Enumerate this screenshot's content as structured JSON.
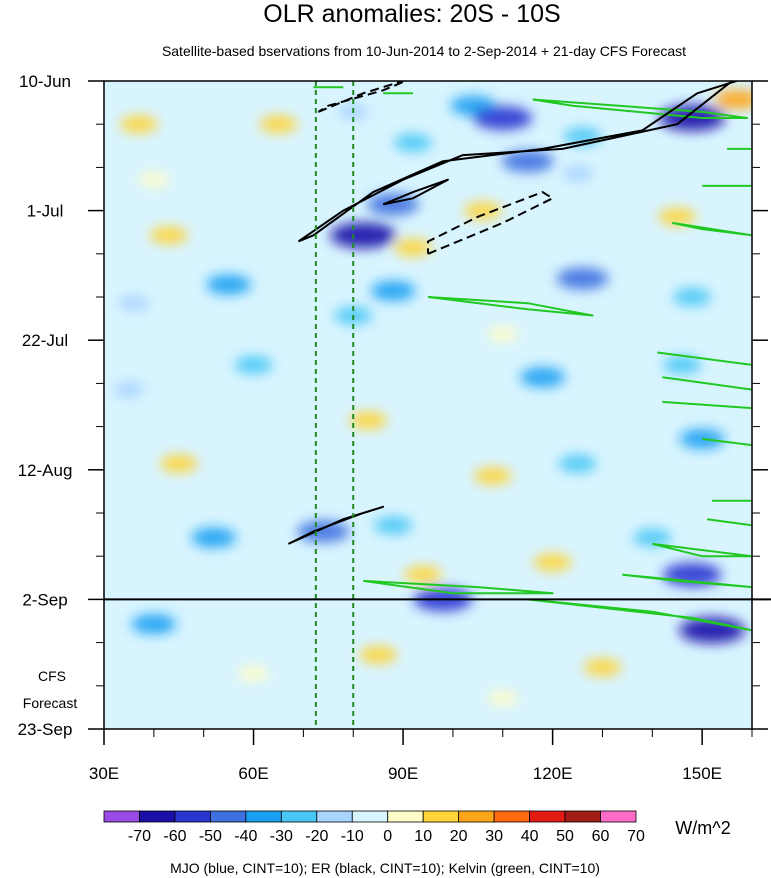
{
  "chart_data": {
    "type": "heatmap",
    "title": "OLR anomalies: 20S - 10S",
    "subtitle": "Satellite-based bservations from 10-Jun-2014 to 2-Sep-2014 + 21-day CFS Forecast",
    "x_axis": {
      "range": [
        30,
        160
      ],
      "unit": "degrees E",
      "ticks": [
        {
          "value": 30,
          "label": "30E"
        },
        {
          "value": 60,
          "label": "60E"
        },
        {
          "value": 90,
          "label": "90E"
        },
        {
          "value": 120,
          "label": "120E"
        },
        {
          "value": 150,
          "label": "150E"
        }
      ]
    },
    "y_axis": {
      "range_days": [
        0,
        105
      ],
      "origin_date": "10-Jun-2014",
      "direction": "time increases downward",
      "ticks": [
        {
          "day": 0,
          "label": "10-Jun"
        },
        {
          "day": 21,
          "label": "1-Jul"
        },
        {
          "day": 42,
          "label": "22-Jul"
        },
        {
          "day": 63,
          "label": "12-Aug"
        },
        {
          "day": 84,
          "label": "2-Sep"
        },
        {
          "day": 105,
          "label": "23-Sep"
        }
      ]
    },
    "forecast": {
      "start_day": 84,
      "label_line1": "CFS",
      "label_line2": "Forecast"
    },
    "reference_lines": {
      "longitudes": [
        72.5,
        80
      ],
      "style": "green dashed"
    },
    "colorbar": {
      "unit": "W/m^2",
      "levels": [
        -70,
        -60,
        -50,
        -40,
        -30,
        -20,
        -10,
        0,
        10,
        20,
        30,
        40,
        50,
        60,
        70
      ],
      "labels": [
        "-70",
        "-60",
        "-50",
        "-40",
        "-30",
        "-20",
        "-10",
        "0",
        "10",
        "20",
        "30",
        "40",
        "50",
        "60",
        "70"
      ],
      "colors": [
        "#9a4be6",
        "#1a10a8",
        "#2a35d0",
        "#3f70e0",
        "#1aa0f2",
        "#48c6f5",
        "#a8d4ff",
        "#d8f4ff",
        "#fffdc8",
        "#ffd53a",
        "#ffa51a",
        "#ff6a10",
        "#e31a14",
        "#a31c16",
        "#ff6cc8"
      ]
    },
    "shaded_anomalies": [
      {
        "lon": 80,
        "day": 5,
        "value": -10
      },
      {
        "lon": 104,
        "day": 4,
        "value": -30
      },
      {
        "lon": 110,
        "day": 6,
        "value": -50
      },
      {
        "lon": 126,
        "day": 9,
        "value": -20
      },
      {
        "lon": 148,
        "day": 6,
        "value": -60
      },
      {
        "lon": 157,
        "day": 3,
        "value": 30
      },
      {
        "lon": 92,
        "day": 10,
        "value": -20
      },
      {
        "lon": 115,
        "day": 13,
        "value": -40
      },
      {
        "lon": 125,
        "day": 15,
        "value": -10
      },
      {
        "lon": 37,
        "day": 7,
        "value": 20
      },
      {
        "lon": 65,
        "day": 7,
        "value": 20
      },
      {
        "lon": 40,
        "day": 16,
        "value": 10
      },
      {
        "lon": 88,
        "day": 20,
        "value": -40
      },
      {
        "lon": 106,
        "day": 21,
        "value": 20
      },
      {
        "lon": 82,
        "day": 25,
        "value": -60
      },
      {
        "lon": 92,
        "day": 27,
        "value": 20
      },
      {
        "lon": 145,
        "day": 22,
        "value": 20
      },
      {
        "lon": 43,
        "day": 25,
        "value": 20
      },
      {
        "lon": 55,
        "day": 33,
        "value": -30
      },
      {
        "lon": 88,
        "day": 34,
        "value": -30
      },
      {
        "lon": 126,
        "day": 32,
        "value": -40
      },
      {
        "lon": 148,
        "day": 35,
        "value": -20
      },
      {
        "lon": 80,
        "day": 38,
        "value": -20
      },
      {
        "lon": 36,
        "day": 36,
        "value": -10
      },
      {
        "lon": 110,
        "day": 41,
        "value": 10
      },
      {
        "lon": 60,
        "day": 46,
        "value": -20
      },
      {
        "lon": 118,
        "day": 48,
        "value": -30
      },
      {
        "lon": 146,
        "day": 46,
        "value": -20
      },
      {
        "lon": 83,
        "day": 55,
        "value": 20
      },
      {
        "lon": 35,
        "day": 50,
        "value": -10
      },
      {
        "lon": 125,
        "day": 62,
        "value": -20
      },
      {
        "lon": 150,
        "day": 58,
        "value": -30
      },
      {
        "lon": 45,
        "day": 62,
        "value": 20
      },
      {
        "lon": 108,
        "day": 64,
        "value": 20
      },
      {
        "lon": 74,
        "day": 73,
        "value": -40
      },
      {
        "lon": 88,
        "day": 72,
        "value": -20
      },
      {
        "lon": 52,
        "day": 74,
        "value": -30
      },
      {
        "lon": 94,
        "day": 80,
        "value": 20
      },
      {
        "lon": 120,
        "day": 78,
        "value": 20
      },
      {
        "lon": 140,
        "day": 74,
        "value": -20
      },
      {
        "lon": 148,
        "day": 80,
        "value": -50
      },
      {
        "lon": 98,
        "day": 84,
        "value": -50
      },
      {
        "lon": 40,
        "day": 88,
        "value": -30
      },
      {
        "lon": 85,
        "day": 93,
        "value": 20
      },
      {
        "lon": 130,
        "day": 95,
        "value": 20
      },
      {
        "lon": 152,
        "day": 89,
        "value": -60
      },
      {
        "lon": 60,
        "day": 96,
        "value": 10
      },
      {
        "lon": 110,
        "day": 100,
        "value": 10
      }
    ],
    "mjo_contours": {
      "label": "MJO (blue, CINT=10)",
      "contours": []
    },
    "er_contours": {
      "label": "ER (black, CINT=10)",
      "contours": [
        {
          "sign": "negative",
          "points": [
            [
              69,
              26
            ],
            [
              78,
              21
            ],
            [
              90,
              16
            ],
            [
              102,
              12
            ],
            [
              122,
              11
            ],
            [
              145,
              7
            ],
            [
              156,
              0
            ],
            [
              160,
              -0.8
            ],
            [
              149,
              2
            ],
            [
              138,
              8
            ],
            [
              118,
              11
            ],
            [
              98,
              13
            ],
            [
              84,
              18
            ],
            [
              72,
              25
            ],
            [
              69,
              26
            ]
          ]
        },
        {
          "sign": "negative",
          "points": [
            [
              86,
              20
            ],
            [
              92,
              18
            ],
            [
              99,
              16
            ],
            [
              92,
              19
            ],
            [
              86,
              20
            ]
          ]
        },
        {
          "sign": "positive",
          "points": [
            [
              73,
              5
            ],
            [
              82,
              2
            ],
            [
              92,
              -0.5
            ],
            [
              86,
              1.5
            ],
            [
              75,
              4
            ],
            [
              73,
              5
            ]
          ]
        },
        {
          "sign": "positive",
          "points": [
            [
              95,
              28
            ],
            [
              110,
              23
            ],
            [
              120,
              19
            ],
            [
              118,
              18
            ],
            [
              105,
              22
            ],
            [
              95,
              26
            ],
            [
              95,
              28
            ]
          ]
        },
        {
          "sign": "negative",
          "points": [
            [
              67,
              75
            ],
            [
              78,
              71
            ],
            [
              86,
              69
            ],
            [
              82,
              70
            ],
            [
              72,
              73
            ],
            [
              67,
              75
            ]
          ]
        }
      ]
    },
    "kelvin_contours": {
      "label": "Kelvin (green, CINT=10)",
      "contours": [
        {
          "points": [
            [
              72,
              1
            ],
            [
              78,
              1
            ]
          ]
        },
        {
          "points": [
            [
              86,
              2
            ],
            [
              92,
              2
            ]
          ]
        },
        {
          "points": [
            [
              116,
              3
            ],
            [
              150,
              5
            ],
            [
              159,
              6
            ],
            [
              150,
              6
            ],
            [
              124,
              4
            ],
            [
              116,
              3
            ]
          ]
        },
        {
          "points": [
            [
              155,
              11
            ],
            [
              160,
              11
            ]
          ]
        },
        {
          "points": [
            [
              150,
              17
            ],
            [
              160,
              17
            ]
          ]
        },
        {
          "points": [
            [
              144,
              23
            ],
            [
              160,
              25
            ],
            [
              150,
              24
            ],
            [
              144,
              23
            ]
          ]
        },
        {
          "points": [
            [
              95,
              35
            ],
            [
              115,
              36
            ],
            [
              128,
              38
            ],
            [
              115,
              37
            ],
            [
              95,
              35
            ]
          ]
        },
        {
          "points": [
            [
              141,
              44
            ],
            [
              160,
              46
            ]
          ]
        },
        {
          "points": [
            [
              142,
              48
            ],
            [
              160,
              50
            ]
          ]
        },
        {
          "points": [
            [
              142,
              52
            ],
            [
              160,
              53
            ]
          ]
        },
        {
          "points": [
            [
              150,
              58
            ],
            [
              160,
              59
            ]
          ]
        },
        {
          "points": [
            [
              152,
              68
            ],
            [
              160,
              68
            ]
          ]
        },
        {
          "points": [
            [
              151,
              71
            ],
            [
              160,
              72
            ]
          ]
        },
        {
          "points": [
            [
              140,
              75
            ],
            [
              160,
              77
            ],
            [
              150,
              77
            ],
            [
              140,
              75
            ]
          ]
        },
        {
          "points": [
            [
              134,
              80
            ],
            [
              160,
              82
            ],
            [
              145,
              81
            ],
            [
              134,
              80
            ]
          ]
        },
        {
          "points": [
            [
              82,
              81
            ],
            [
              105,
              82
            ],
            [
              120,
              83
            ],
            [
              100,
              83
            ],
            [
              82,
              81
            ]
          ]
        },
        {
          "points": [
            [
              115,
              84
            ],
            [
              148,
              87
            ],
            [
              160,
              89
            ],
            [
              140,
              86
            ],
            [
              115,
              84
            ]
          ]
        }
      ]
    },
    "footnote": "MJO (blue, CINT=10); ER (black, CINT=10); Kelvin (green, CINT=10)"
  }
}
